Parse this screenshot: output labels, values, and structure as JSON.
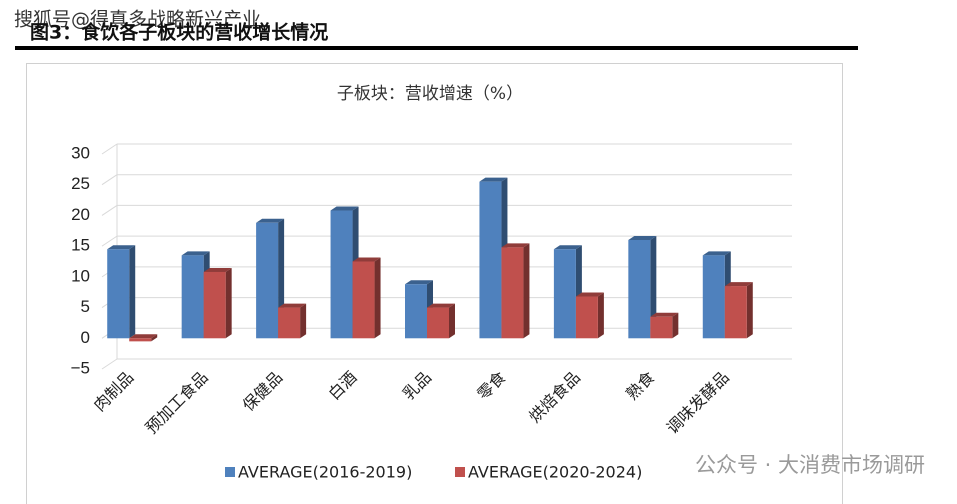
{
  "header": {
    "title": "图3：食饮各子板块的营收增长情况",
    "watermark": "搜狐号@得真多战略新兴产业"
  },
  "footer_watermark": "公众号 · 大消费市场调研",
  "chart_data": {
    "type": "bar3d",
    "title": "子板块：营收增速（%）",
    "categories": [
      "肉制品",
      "预加工食品",
      "保健品",
      "白酒",
      "乳品",
      "零食",
      "烘焙食品",
      "熟食",
      "调味发酵品"
    ],
    "series": [
      {
        "name": "AVERAGE(2016-2019)",
        "color": "#4f81bd",
        "values": [
          14.5,
          13.5,
          18.8,
          20.8,
          8.8,
          25.5,
          14.5,
          16,
          13.5
        ]
      },
      {
        "name": "AVERAGE(2020-2024)",
        "color": "#c0504d",
        "values": [
          -0.5,
          10.8,
          5,
          12.5,
          5,
          14.8,
          6.8,
          3.5,
          8.5
        ]
      }
    ],
    "ylim": [
      -5,
      30
    ],
    "yticks": [
      {
        "value": -5,
        "label": "−5"
      },
      0,
      5,
      10,
      15,
      20,
      25,
      30
    ],
    "grid": true,
    "legend": "bottom"
  }
}
